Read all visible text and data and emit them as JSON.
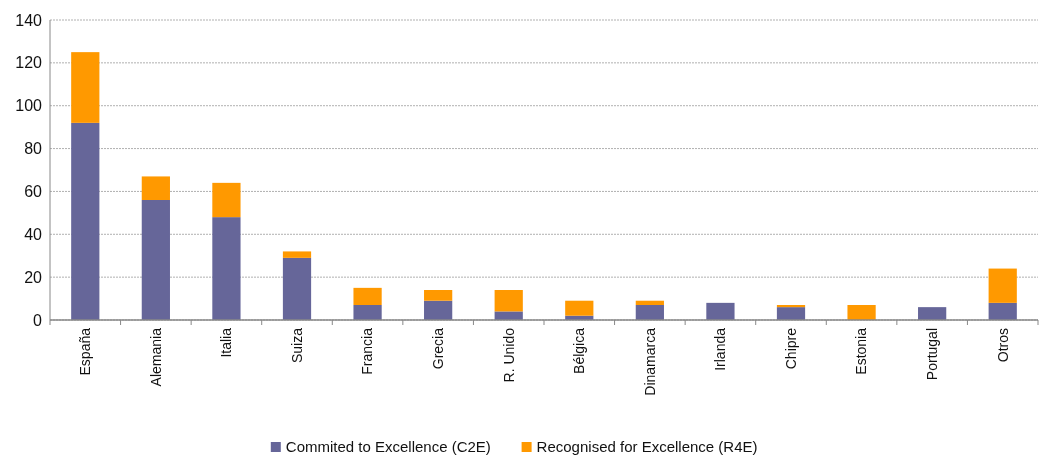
{
  "chart_data": {
    "type": "bar",
    "stacked": true,
    "categories": [
      "España",
      "Alemania",
      "Italia",
      "Suiza",
      "Francia",
      "Grecia",
      "R. Unido",
      "Bélgica",
      "Dinamarca",
      "Irlanda",
      "Chipre",
      "Estonia",
      "Portugal",
      "Otros"
    ],
    "series": [
      {
        "name": "Commited to Excellence (C2E)",
        "color": "#666699",
        "values": [
          92,
          56,
          48,
          29,
          7,
          9,
          4,
          2,
          7,
          8,
          6,
          0,
          6,
          8
        ]
      },
      {
        "name": "Recognised for Excellence (R4E)",
        "color": "#ff9900",
        "values": [
          33,
          11,
          16,
          3,
          8,
          5,
          10,
          7,
          2,
          0,
          1,
          7,
          0,
          16
        ]
      }
    ],
    "ylim": [
      0,
      140
    ],
    "yticks": [
      0,
      20,
      40,
      60,
      80,
      100,
      120,
      140
    ],
    "grid": "y",
    "legend": "bottom"
  }
}
